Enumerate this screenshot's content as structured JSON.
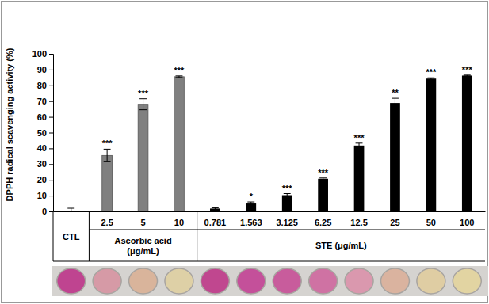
{
  "chart_data": {
    "type": "bar",
    "y_label": "DPPH radical scavenging activity (%)",
    "categories": [
      null,
      "2.5",
      "5",
      "10",
      "0.781",
      "1.563",
      "3.125",
      "6.25",
      "12.5",
      "25",
      "50",
      "100"
    ],
    "values": [
      0,
      35.5,
      68,
      85.5,
      1.8,
      5,
      10.3,
      20.7,
      41.8,
      68.8,
      84.3,
      86.2
    ],
    "errors": [
      2,
      4,
      3.5,
      0.5,
      0.5,
      1,
      1,
      0.5,
      1.5,
      3,
      0.5,
      0.3
    ],
    "annotations": [
      null,
      "***",
      "***",
      "***",
      null,
      "*",
      "***",
      "***",
      "***",
      "**",
      "***",
      "***"
    ],
    "colors": [
      "#ffffff",
      "#808080",
      "#808080",
      "#808080",
      "#000000",
      "#000000",
      "#000000",
      "#000000",
      "#000000",
      "#000000",
      "#000000",
      "#000000"
    ],
    "groups": [
      {
        "label": [
          "CTL"
        ],
        "size": 1
      },
      {
        "label": [
          "Ascorbic acid",
          "(μg/mL)"
        ],
        "size": 3
      },
      {
        "label": [
          "STE (μg/mL)"
        ],
        "size": 8
      }
    ],
    "ylim": [
      0,
      100
    ],
    "yticks": [
      0,
      10,
      20,
      30,
      40,
      50,
      60,
      70,
      80,
      90,
      100
    ],
    "grid": false
  }
}
